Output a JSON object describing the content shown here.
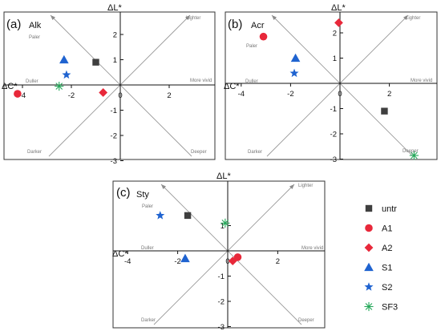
{
  "axes": {
    "y_title": "ΔL*",
    "x_title": "ΔC*"
  },
  "quadrant_labels": {
    "lighter": "Lighter",
    "paler": "Paler",
    "more_vivid": "More vivid",
    "duller": "Duller",
    "darker": "Darker",
    "deeper": "Deeper"
  },
  "series_style": [
    {
      "name": "untr",
      "shape": "square",
      "color": "#3f3f3f"
    },
    {
      "name": "A1",
      "shape": "circle",
      "color": "#e8283a"
    },
    {
      "name": "A2",
      "shape": "diamond",
      "color": "#e8283a"
    },
    {
      "name": "S1",
      "shape": "triangle",
      "color": "#1f63d0"
    },
    {
      "name": "S2",
      "shape": "star",
      "color": "#1f63d0"
    },
    {
      "name": "SF3",
      "shape": "asterisk",
      "color": "#25a85a"
    }
  ],
  "chart_data": [
    {
      "type": "scatter",
      "panel_letter": "(a)",
      "title": "Alk",
      "xlabel": "ΔC*",
      "ylabel": "ΔL*",
      "xlim": [
        -4.4,
        3.4
      ],
      "ylim": [
        -3.5,
        2.6
      ],
      "xticks": [
        -4,
        -2,
        0,
        2
      ],
      "yticks": [
        -3,
        -2,
        -1,
        1,
        2
      ],
      "grid": false,
      "series": [
        {
          "name": "untr",
          "x": [
            -1.0
          ],
          "y": [
            0.9
          ]
        },
        {
          "name": "A1",
          "x": [
            -4.2
          ],
          "y": [
            -0.35
          ]
        },
        {
          "name": "A2",
          "x": [
            -0.7
          ],
          "y": [
            -0.3
          ]
        },
        {
          "name": "S1",
          "x": [
            -2.3
          ],
          "y": [
            1.0
          ]
        },
        {
          "name": "S2",
          "x": [
            -2.2
          ],
          "y": [
            0.4
          ]
        },
        {
          "name": "SF3",
          "x": [
            -2.5
          ],
          "y": [
            -0.05
          ]
        }
      ]
    },
    {
      "type": "scatter",
      "panel_letter": "(b)",
      "title": "Acr",
      "xlabel": "ΔC*",
      "ylabel": "ΔL*",
      "xlim": [
        -4.4,
        3.4
      ],
      "ylim": [
        -3.5,
        2.6
      ],
      "xticks": [
        -4,
        -2,
        0,
        2
      ],
      "yticks": [
        -3,
        -2,
        -1,
        1,
        2
      ],
      "grid": false,
      "series": [
        {
          "name": "untr",
          "x": [
            1.8
          ],
          "y": [
            -1.1
          ]
        },
        {
          "name": "A1",
          "x": [
            -3.1
          ],
          "y": [
            1.85
          ]
        },
        {
          "name": "A2",
          "x": [
            -0.05
          ],
          "y": [
            2.4
          ]
        },
        {
          "name": "S1",
          "x": [
            -1.8
          ],
          "y": [
            1.0
          ]
        },
        {
          "name": "S2",
          "x": [
            -1.85
          ],
          "y": [
            0.4
          ]
        },
        {
          "name": "SF3",
          "x": [
            3.0
          ],
          "y": [
            -3.25
          ]
        }
      ]
    },
    {
      "type": "scatter",
      "panel_letter": "(c)",
      "title": "Sty",
      "xlabel": "ΔC*",
      "ylabel": "ΔL*",
      "xlim": [
        -4.6,
        3.4
      ],
      "ylim": [
        -3.5,
        2.1
      ],
      "xticks": [
        -4,
        -2,
        0,
        2
      ],
      "yticks": [
        -3,
        -2,
        -1,
        1
      ],
      "grid": false,
      "series": [
        {
          "name": "untr",
          "x": [
            -1.6
          ],
          "y": [
            1.4
          ]
        },
        {
          "name": "A1",
          "x": [
            0.4
          ],
          "y": [
            -0.25
          ]
        },
        {
          "name": "A2",
          "x": [
            0.2
          ],
          "y": [
            -0.4
          ]
        },
        {
          "name": "S1",
          "x": [
            -1.7
          ],
          "y": [
            -0.3
          ]
        },
        {
          "name": "S2",
          "x": [
            -2.7
          ],
          "y": [
            1.4
          ]
        },
        {
          "name": "SF3",
          "x": [
            -0.1
          ],
          "y": [
            1.1
          ]
        }
      ]
    }
  ]
}
